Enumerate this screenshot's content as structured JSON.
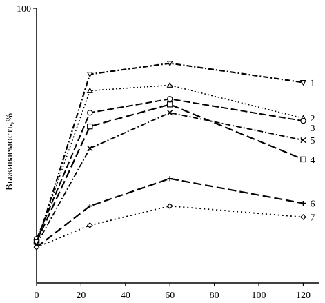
{
  "chart_data": {
    "type": "line",
    "ylabel": "Выживаемость,%",
    "xlabel": "",
    "xlim": [
      0,
      127
    ],
    "ylim": [
      0,
      100
    ],
    "x_ticks": [
      0,
      20,
      40,
      60,
      80,
      100,
      120
    ],
    "y_tick_labels": [
      "100"
    ],
    "grid": false,
    "series": [
      {
        "name": "1",
        "dash": "8 3 2 3",
        "width": 2.2,
        "marker": "triangle-down",
        "points": [
          [
            0,
            14
          ],
          [
            24,
            76
          ],
          [
            60,
            80
          ],
          [
            120,
            73
          ]
        ]
      },
      {
        "name": "2",
        "dash": "2 3",
        "width": 1.5,
        "marker": "triangle",
        "points": [
          [
            0,
            15
          ],
          [
            24,
            70
          ],
          [
            60,
            72
          ],
          [
            120,
            60
          ]
        ]
      },
      {
        "name": "3",
        "dash": "10 4",
        "width": 2.0,
        "marker": "circle",
        "points": [
          [
            0,
            16
          ],
          [
            24,
            62
          ],
          [
            60,
            67
          ],
          [
            120,
            59
          ]
        ]
      },
      {
        "name": "4",
        "dash": "12 5",
        "width": 2.2,
        "marker": "square",
        "points": [
          [
            0,
            15
          ],
          [
            24,
            57
          ],
          [
            60,
            65
          ],
          [
            120,
            45
          ]
        ]
      },
      {
        "name": "5",
        "dash": "8 3 2 3",
        "width": 1.8,
        "marker": "x",
        "points": [
          [
            0,
            14
          ],
          [
            24,
            49
          ],
          [
            60,
            62
          ],
          [
            120,
            52
          ]
        ]
      },
      {
        "name": "6",
        "dash": "12 5",
        "width": 2.2,
        "marker": "plus",
        "points": [
          [
            0,
            13
          ],
          [
            24,
            28
          ],
          [
            60,
            38
          ],
          [
            120,
            29
          ]
        ]
      },
      {
        "name": "7",
        "dash": "2 4",
        "width": 1.8,
        "marker": "diamond",
        "points": [
          [
            0,
            13
          ],
          [
            24,
            21
          ],
          [
            60,
            28
          ],
          [
            120,
            24
          ]
        ]
      }
    ]
  }
}
